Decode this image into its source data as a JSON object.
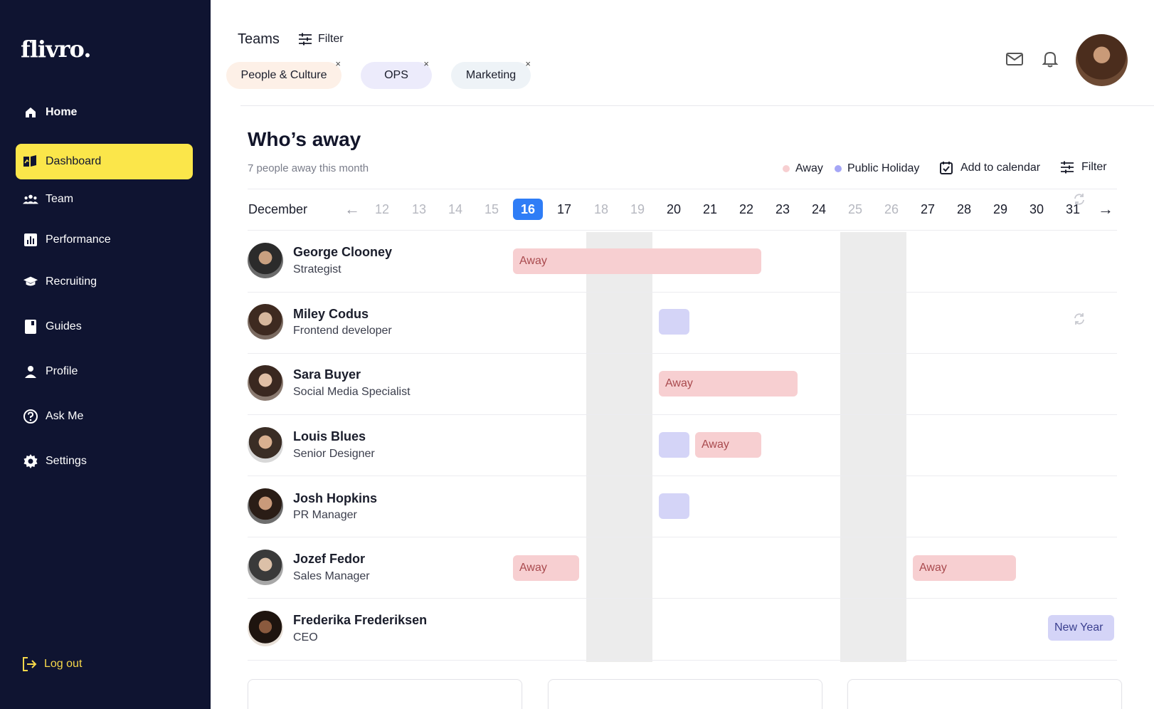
{
  "sidebar": {
    "logo": "flivro.",
    "items": [
      {
        "label": "Home",
        "icon": "home-icon"
      },
      {
        "label": "Dashboard",
        "icon": "dashboard-icon"
      },
      {
        "label": "Team",
        "icon": "team-icon"
      },
      {
        "label": "Performance",
        "icon": "performance-icon"
      },
      {
        "label": "Recruiting",
        "icon": "recruiting-icon"
      },
      {
        "label": "Guides",
        "icon": "guides-icon"
      },
      {
        "label": "Profile",
        "icon": "profile-icon"
      },
      {
        "label": "Ask Me",
        "icon": "help-icon"
      },
      {
        "label": "Settings",
        "icon": "gear-icon"
      }
    ],
    "active": "Dashboard",
    "logout": "Log out"
  },
  "header": {
    "title": "Teams",
    "filter_label": "Filter",
    "chips": [
      "People & Culture",
      "OPS",
      "Marketing"
    ],
    "chip_remove": "×"
  },
  "away": {
    "title": "Who’s away",
    "subtitle": "7 people away this month",
    "legend": [
      {
        "label": "Away",
        "color": "#f7cfd1"
      },
      {
        "label": "Public Holiday",
        "color": "#a5a6f6"
      }
    ],
    "add_calendar": "Add to calendar",
    "filter_label": "Filter",
    "month": "December",
    "prev": "←",
    "next": "→",
    "days": [
      "12",
      "13",
      "14",
      "15",
      "16",
      "17",
      "18",
      "19",
      "20",
      "21",
      "22",
      "23",
      "24",
      "25",
      "26",
      "27",
      "28",
      "29",
      "30",
      "31"
    ],
    "today": "16",
    "people": [
      {
        "name": "George Clooney",
        "role": "Strategist"
      },
      {
        "name": "Miley Codus",
        "role": "Frontend developer"
      },
      {
        "name": "Sara Buyer",
        "role": "Social Media Specialist"
      },
      {
        "name": "Louis Blues",
        "role": "Senior Designer"
      },
      {
        "name": "Josh Hopkins",
        "role": "PR Manager"
      },
      {
        "name": "Jozef Fedor",
        "role": "Sales Manager"
      },
      {
        "name": "Frederika Frederiksen",
        "role": "CEO"
      }
    ],
    "bar_away_label": "Away",
    "holiday_label": "New Year"
  },
  "colors": {
    "sidebar_bg": "#0f1431",
    "active_bg": "#fbe64a",
    "today": "#2f7df6",
    "away": "#f7cfd1",
    "holiday": "#d4d4f7"
  }
}
